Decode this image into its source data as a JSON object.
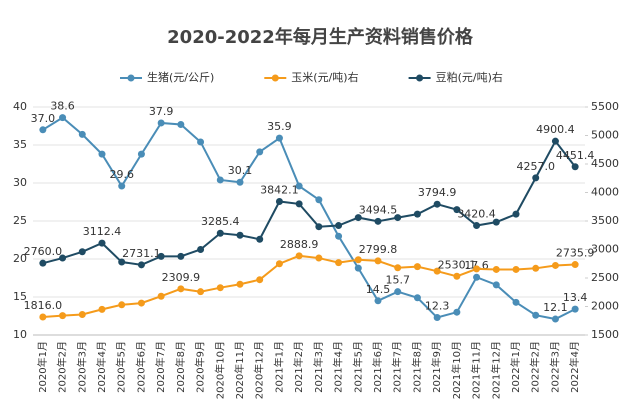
{
  "chart_data": {
    "type": "line",
    "title": "2020-2022年每月生产资料销售价格",
    "categories": [
      "2020年1月",
      "2020年2月",
      "2020年3月",
      "2020年4月",
      "2020年5月",
      "2020年6月",
      "2020年7月",
      "2020年8月",
      "2020年9月",
      "2020年10月",
      "2020年11月",
      "2020年12月",
      "2021年1月",
      "2021年2月",
      "2021年3月",
      "2021年4月",
      "2021年5月",
      "2021年6月",
      "2021年7月",
      "2021年8月",
      "2021年9月",
      "2021年10月",
      "2021年11月",
      "2021年12月",
      "2022年1月",
      "2022年2月",
      "2022年3月",
      "2022年4月"
    ],
    "series": [
      {
        "name": "生猪(元/公斤)",
        "color": "#4a8db7",
        "values": [
          37.0,
          38.6,
          36.4,
          33.8,
          29.6,
          33.8,
          37.9,
          37.7,
          35.4,
          30.4,
          30.1,
          34.1,
          35.9,
          29.6,
          27.8,
          23.0,
          18.8,
          14.5,
          15.7,
          14.9,
          12.3,
          13.0,
          17.6,
          16.6,
          14.3,
          12.6,
          12.1,
          13.4
        ],
        "value_labels": [
          "37.0",
          "38.6",
          null,
          null,
          "29.6",
          null,
          "37.9",
          null,
          null,
          null,
          "30.1",
          null,
          "35.9",
          null,
          null,
          null,
          null,
          "14.5",
          "15.7",
          null,
          "12.3",
          null,
          "17.6",
          null,
          null,
          null,
          "12.1",
          "13.4"
        ]
      },
      {
        "name": "玉米(元/吨)右",
        "color": "#f59b1b",
        "axis": "y2",
        "values": [
          1816.0,
          1840,
          1860,
          1950,
          2030,
          2060,
          2180,
          2309.9,
          2260,
          2330,
          2390,
          2470,
          2750,
          2888.9,
          2850,
          2770,
          2820,
          2799.8,
          2680,
          2700,
          2620,
          2530.1,
          2660,
          2650,
          2650,
          2670,
          2720,
          2735.9
        ],
        "value_labels": [
          "1816.0",
          null,
          null,
          null,
          null,
          null,
          null,
          "2309.9",
          null,
          null,
          null,
          null,
          null,
          "2888.9",
          null,
          null,
          null,
          "2799.8",
          null,
          null,
          null,
          "2530.1",
          null,
          null,
          null,
          null,
          null,
          "2735.9"
        ]
      },
      {
        "name": "豆粕(元/吨)右",
        "color": "#1f4b63",
        "axis": "y2",
        "values": [
          2760.0,
          2850,
          2960,
          3112.4,
          2780,
          2731.1,
          2880,
          2880,
          3000,
          3285.4,
          3250,
          3180,
          3842.1,
          3800,
          3400,
          3420,
          3560,
          3494.5,
          3560,
          3620,
          3794.9,
          3700,
          3420.4,
          3480,
          3620,
          4257.0,
          4900.4,
          4451.4
        ],
        "value_labels": [
          "2760.0",
          null,
          null,
          "3112.4",
          null,
          "2731.1",
          null,
          null,
          null,
          "3285.4",
          null,
          null,
          "3842.1",
          null,
          null,
          null,
          null,
          "3494.5",
          null,
          null,
          "3794.9",
          null,
          "3420.4",
          null,
          null,
          "4257.0",
          "4900.4",
          "4451.4"
        ]
      }
    ],
    "ylim": [
      10,
      40
    ],
    "yticks": [
      10,
      15,
      20,
      25,
      30,
      35,
      40
    ],
    "y2lim": [
      1500,
      5500
    ],
    "y2ticks": [
      1500,
      2000,
      2500,
      3000,
      3500,
      4000,
      4500,
      5000,
      5500
    ],
    "grid": true
  }
}
